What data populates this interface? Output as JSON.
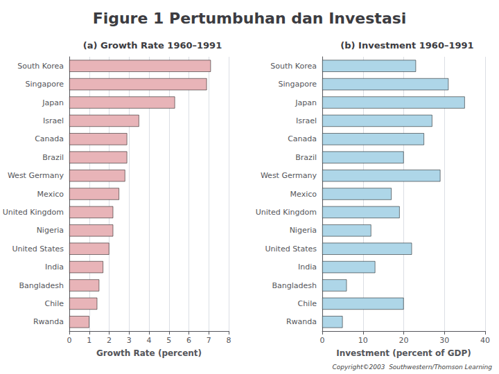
{
  "title": "Figure 1 Pertumbuhan dan Investasi",
  "annotations": [
    "Copyright©2003  Southwestern/Thomson Learning"
  ],
  "chart_data": [
    {
      "type": "bar",
      "orientation": "horizontal",
      "title": "(a) Growth Rate 1960–1991",
      "categories": [
        "South Korea",
        "Singapore",
        "Japan",
        "Israel",
        "Canada",
        "Brazil",
        "West Germany",
        "Mexico",
        "United Kingdom",
        "Nigeria",
        "United States",
        "India",
        "Bangladesh",
        "Chile",
        "Rwanda"
      ],
      "values": [
        7.1,
        6.9,
        5.3,
        3.5,
        2.9,
        2.9,
        2.8,
        2.5,
        2.2,
        2.2,
        2.0,
        1.7,
        1.5,
        1.4,
        1.0
      ],
      "color": "#e8b4b8",
      "xlabel": "Growth Rate (percent)",
      "xlim": [
        0,
        8
      ],
      "xticks": [
        0,
        1,
        2,
        3,
        4,
        5,
        6,
        7,
        8
      ],
      "grid": true
    },
    {
      "type": "bar",
      "orientation": "horizontal",
      "title": "(b) Investment 1960–1991",
      "categories": [
        "South Korea",
        "Singapore",
        "Japan",
        "Israel",
        "Canada",
        "Brazil",
        "West Germany",
        "Mexico",
        "United Kingdom",
        "Nigeria",
        "United States",
        "India",
        "Bangladesh",
        "Chile",
        "Rwanda"
      ],
      "values": [
        23,
        31,
        35,
        27,
        25,
        20,
        29,
        17,
        19,
        12,
        22,
        13,
        6,
        20,
        5
      ],
      "color": "#aed6e8",
      "xlabel": "Investment (percent of GDP)",
      "xlim": [
        0,
        40
      ],
      "xticks": [
        0,
        10,
        20,
        30,
        40
      ],
      "grid": true
    }
  ]
}
